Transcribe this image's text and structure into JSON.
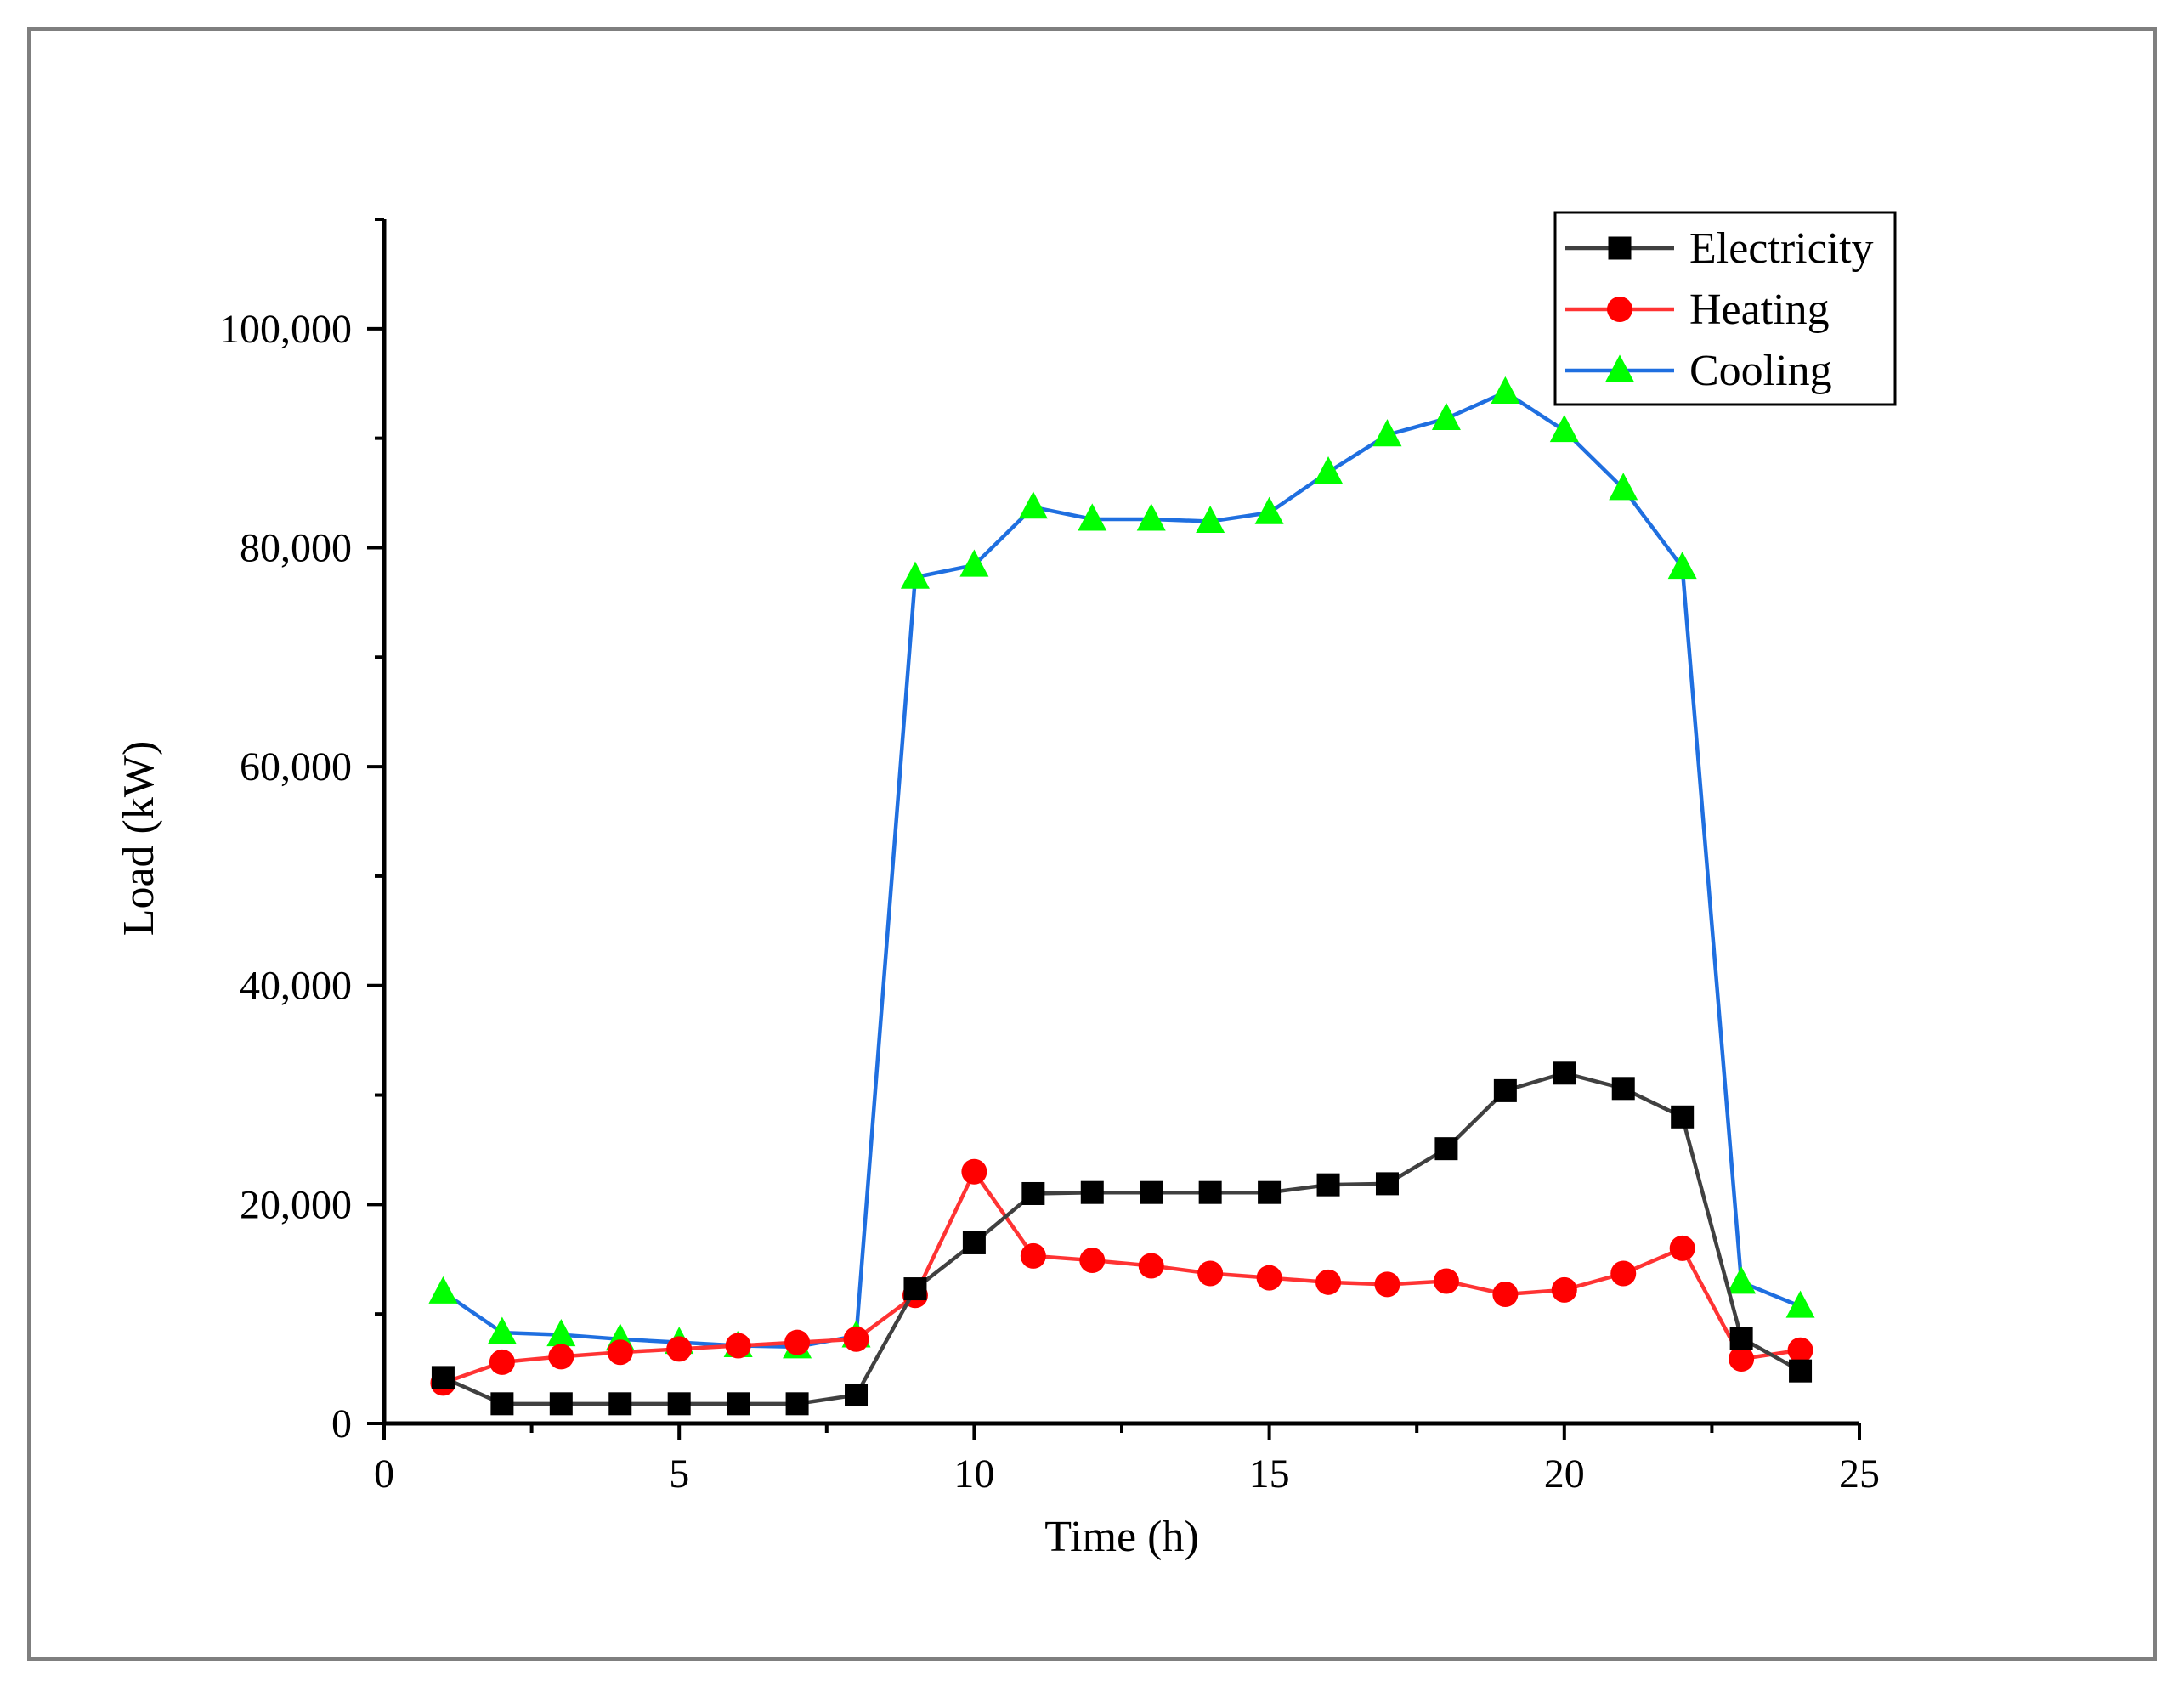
{
  "chart_data": {
    "type": "line",
    "title": "",
    "xlabel": "Time (h)",
    "ylabel": "Load (kW)",
    "xlim": [
      0,
      25
    ],
    "ylim": [
      0,
      110000
    ],
    "xticks": [
      0,
      5,
      10,
      15,
      20,
      25
    ],
    "xtick_labels": [
      "0",
      "5",
      "10",
      "15",
      "20",
      "25"
    ],
    "yticks": [
      0,
      20000,
      40000,
      60000,
      80000,
      100000
    ],
    "ytick_labels": [
      "0",
      "20,000",
      "40,000",
      "60,000",
      "80,000",
      "100,000"
    ],
    "grid": false,
    "legend_position": "top-right",
    "x": [
      1,
      2,
      3,
      4,
      5,
      6,
      7,
      8,
      9,
      10,
      11,
      12,
      13,
      14,
      15,
      16,
      17,
      18,
      19,
      20,
      21,
      22,
      23,
      24
    ],
    "series": [
      {
        "name": "Electricity",
        "color": "#404040",
        "marker": "square",
        "marker_color": "#000000",
        "values": [
          4200,
          1800,
          1800,
          1800,
          1800,
          1800,
          1800,
          2600,
          12300,
          16500,
          21000,
          21100,
          21100,
          21100,
          21100,
          21800,
          21900,
          25100,
          30400,
          32000,
          30600,
          28000,
          7800,
          4800
        ]
      },
      {
        "name": "Heating",
        "color": "#ff3333",
        "marker": "circle",
        "marker_color": "#ff0000",
        "values": [
          3700,
          5600,
          6100,
          6500,
          6800,
          7100,
          7400,
          7700,
          11700,
          23000,
          15300,
          14900,
          14400,
          13700,
          13300,
          12900,
          12700,
          13000,
          11800,
          12200,
          13700,
          16000,
          5900,
          6700
        ]
      },
      {
        "name": "Cooling",
        "color": "#1f6fe0",
        "marker": "triangle",
        "marker_color": "#00ff00",
        "values": [
          12000,
          8300,
          8100,
          7700,
          7400,
          7100,
          7000,
          8000,
          77300,
          78400,
          83700,
          82600,
          82600,
          82400,
          83200,
          86900,
          90300,
          91800,
          94200,
          90700,
          85400,
          78200,
          12900,
          10700
        ]
      }
    ]
  }
}
